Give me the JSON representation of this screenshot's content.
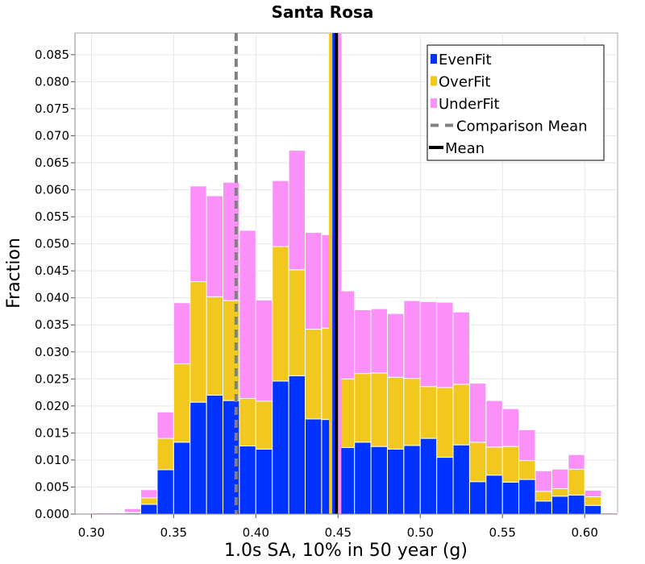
{
  "chart_data": {
    "type": "bar",
    "stacked": true,
    "title": "Santa Rosa",
    "xlabel": "1.0s SA, 10% in 50 year (g)",
    "ylabel": "Fraction",
    "xlim": [
      0.29,
      0.62
    ],
    "ylim": [
      0.0,
      0.089
    ],
    "bin_width": 0.01,
    "x_ticks": [
      "0.30",
      "0.35",
      "0.40",
      "0.45",
      "0.50",
      "0.55",
      "0.60"
    ],
    "y_ticks": [
      "0.000",
      "0.005",
      "0.010",
      "0.015",
      "0.020",
      "0.025",
      "0.030",
      "0.035",
      "0.040",
      "0.045",
      "0.050",
      "0.055",
      "0.060",
      "0.065",
      "0.070",
      "0.075",
      "0.080",
      "0.085"
    ],
    "bins": [
      0.3,
      0.31,
      0.32,
      0.33,
      0.34,
      0.35,
      0.36,
      0.37,
      0.38,
      0.39,
      0.4,
      0.41,
      0.42,
      0.43,
      0.44,
      0.45,
      0.46,
      0.47,
      0.48,
      0.49,
      0.5,
      0.51,
      0.52,
      0.53,
      0.54,
      0.55,
      0.56,
      0.57,
      0.58,
      0.59,
      0.6,
      0.61
    ],
    "series": [
      {
        "name": "EvenFit",
        "color": "#0033ff",
        "values": [
          0.0,
          0.0,
          0.0002,
          0.0018,
          0.0082,
          0.0133,
          0.0207,
          0.022,
          0.021,
          0.0126,
          0.012,
          0.0246,
          0.0256,
          0.0176,
          0.0175,
          0.0123,
          0.0133,
          0.0125,
          0.012,
          0.0127,
          0.014,
          0.0105,
          0.0128,
          0.006,
          0.0072,
          0.0059,
          0.0064,
          0.0024,
          0.0033,
          0.0035,
          0.0016,
          0.0
        ]
      },
      {
        "name": "OverFit",
        "color": "#f2c71e",
        "values": [
          0.0,
          0.0,
          0.0001,
          0.0012,
          0.0058,
          0.0145,
          0.0223,
          0.0182,
          0.0185,
          0.0088,
          0.0089,
          0.0249,
          0.0196,
          0.0166,
          0.0169,
          0.0127,
          0.0127,
          0.0136,
          0.0133,
          0.0124,
          0.0096,
          0.0129,
          0.0112,
          0.0073,
          0.0052,
          0.0066,
          0.0035,
          0.0018,
          0.0014,
          0.0048,
          0.0016,
          0.0
        ]
      },
      {
        "name": "UnderFit",
        "color": "#fa90f8",
        "values": [
          0.0002,
          0.0002,
          0.0007,
          0.0015,
          0.0049,
          0.0113,
          0.0177,
          0.0187,
          0.0219,
          0.0311,
          0.0187,
          0.0122,
          0.0221,
          0.0179,
          0.0173,
          0.0163,
          0.0118,
          0.0119,
          0.0118,
          0.0144,
          0.0157,
          0.0158,
          0.0134,
          0.0109,
          0.0086,
          0.007,
          0.0057,
          0.0038,
          0.0036,
          0.0027,
          0.0012,
          0.0002
        ]
      }
    ],
    "comparison_mean": {
      "label": "Comparison Mean",
      "x": 0.388,
      "color": "#808080",
      "style": "dashed"
    },
    "mean": {
      "label": "Mean",
      "x": 0.449,
      "color": "#000000"
    },
    "extra_lines": [
      {
        "x": 0.4455,
        "color": "#f2c71e"
      },
      {
        "x": 0.4475,
        "color": "#0033ff"
      },
      {
        "x": 0.451,
        "color": "#fa90f8"
      }
    ],
    "legend": {
      "placement": "top-right",
      "entries": [
        {
          "label": "EvenFit",
          "kind": "box",
          "color": "#0033ff"
        },
        {
          "label": "OverFit",
          "kind": "box",
          "color": "#f2c71e"
        },
        {
          "label": "UnderFit",
          "kind": "box",
          "color": "#fa90f8"
        },
        {
          "label": "Comparison Mean",
          "kind": "dashed",
          "color": "#808080"
        },
        {
          "label": "Mean",
          "kind": "line",
          "color": "#000000"
        }
      ]
    },
    "grid": true
  }
}
